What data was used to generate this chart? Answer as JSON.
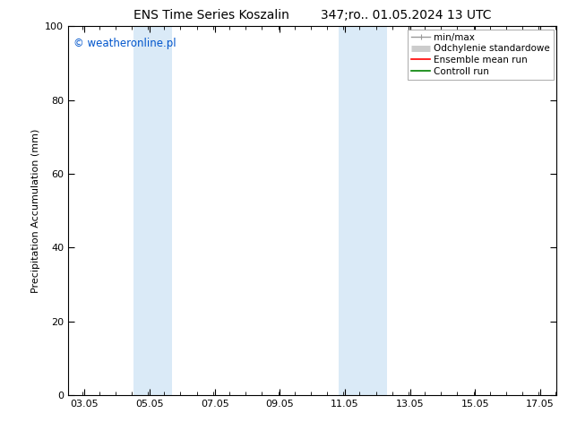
{
  "title_left": "ENS Time Series Koszalin",
  "title_right": "347;ro.. 01.05.2024 13 UTC",
  "ylabel": "Precipitation Accumulation (mm)",
  "ylim": [
    0,
    100
  ],
  "yticks": [
    0,
    20,
    40,
    60,
    80,
    100
  ],
  "xtick_labels": [
    "03.05",
    "05.05",
    "07.05",
    "09.05",
    "11.05",
    "13.05",
    "15.05",
    "17.05"
  ],
  "xtick_positions": [
    3.05,
    5.05,
    7.05,
    9.05,
    11.05,
    13.05,
    15.05,
    17.05
  ],
  "xlim": [
    2.55,
    17.55
  ],
  "shaded_bands": [
    {
      "x_start": 4.55,
      "x_end": 5.75
    },
    {
      "x_start": 10.85,
      "x_end": 12.35
    }
  ],
  "band_color": "#daeaf7",
  "watermark_text": "© weatheronline.pl",
  "watermark_color": "#0055cc",
  "legend_items": [
    {
      "label": "min/max",
      "color": "#999999",
      "linewidth": 1.0
    },
    {
      "label": "Odchylenie standardowe",
      "color": "#cccccc",
      "linewidth": 5
    },
    {
      "label": "Ensemble mean run",
      "color": "red",
      "linewidth": 1.2
    },
    {
      "label": "Controll run",
      "color": "green",
      "linewidth": 1.2
    }
  ],
  "bg_color": "white",
  "title_fontsize": 10,
  "axis_label_fontsize": 8,
  "tick_fontsize": 8,
  "legend_fontsize": 7.5
}
